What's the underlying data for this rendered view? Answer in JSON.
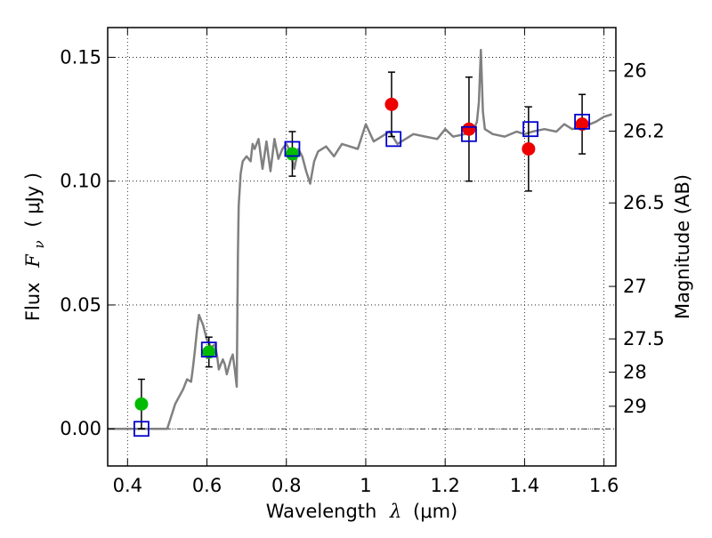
{
  "colors": {
    "background": "#ffffff",
    "model": "#808080",
    "green_points": "#00bb00",
    "red_points": "#ee0000",
    "squares": "#0000cc",
    "errorbar": "#000000",
    "zero_line": "#000000"
  },
  "chart_data": {
    "type": "scatter",
    "title": "",
    "xlabel": "Wavelength",
    "xlabel_symbol": "λ",
    "xlabel_unit": "(μm)",
    "ylabel": "Flux",
    "ylabel_symbol": "F",
    "ylabel_subscript": "ν",
    "ylabel_unit": "( μJy )",
    "y2label": "Magnitude (AB)",
    "xlim": [
      0.35,
      1.63
    ],
    "ylim": [
      -0.015,
      0.162
    ],
    "grid": true,
    "xticks": [
      0.4,
      0.6,
      0.8,
      1.0,
      1.2,
      1.4,
      1.6
    ],
    "xtick_labels": [
      "0.4",
      "0.6",
      "0.8",
      "1",
      "1.2",
      "1.4",
      "1.6"
    ],
    "yticks": [
      0.0,
      0.05,
      0.1,
      0.15
    ],
    "ytick_labels": [
      "0.00",
      "0.05",
      "0.10",
      "0.15"
    ],
    "y2_ticks": [
      {
        "label": "26",
        "flux": 0.1445
      },
      {
        "label": "26.2",
        "flux": 0.1202
      },
      {
        "label": "26.5",
        "flux": 0.0912
      },
      {
        "label": "27",
        "flux": 0.0575
      },
      {
        "label": "27.5",
        "flux": 0.0363
      },
      {
        "label": "28",
        "flux": 0.0229
      },
      {
        "label": "29",
        "flux": 0.0091
      }
    ],
    "zero_line": 0.0,
    "series": [
      {
        "name": "model SED",
        "kind": "line",
        "x": [
          0.35,
          0.5,
          0.52,
          0.54,
          0.55,
          0.56,
          0.565,
          0.57,
          0.575,
          0.58,
          0.585,
          0.59,
          0.6,
          0.61,
          0.62,
          0.625,
          0.63,
          0.635,
          0.64,
          0.645,
          0.65,
          0.66,
          0.665,
          0.67,
          0.675,
          0.678,
          0.68,
          0.685,
          0.69,
          0.7,
          0.71,
          0.715,
          0.72,
          0.73,
          0.74,
          0.75,
          0.76,
          0.77,
          0.78,
          0.79,
          0.8,
          0.81,
          0.82,
          0.83,
          0.84,
          0.85,
          0.86,
          0.87,
          0.88,
          0.9,
          0.92,
          0.94,
          0.96,
          0.98,
          1.0,
          1.02,
          1.04,
          1.06,
          1.08,
          1.1,
          1.12,
          1.15,
          1.18,
          1.2,
          1.22,
          1.25,
          1.27,
          1.28,
          1.285,
          1.29,
          1.295,
          1.3,
          1.32,
          1.35,
          1.38,
          1.4,
          1.42,
          1.45,
          1.48,
          1.5,
          1.52,
          1.55,
          1.58,
          1.6,
          1.62
        ],
        "y": [
          0.0,
          0.0,
          0.01,
          0.016,
          0.02,
          0.019,
          0.025,
          0.032,
          0.04,
          0.046,
          0.044,
          0.042,
          0.036,
          0.033,
          0.034,
          0.03,
          0.024,
          0.026,
          0.028,
          0.026,
          0.022,
          0.028,
          0.03,
          0.024,
          0.017,
          0.07,
          0.09,
          0.103,
          0.108,
          0.11,
          0.108,
          0.115,
          0.113,
          0.117,
          0.105,
          0.116,
          0.104,
          0.117,
          0.109,
          0.113,
          0.115,
          0.112,
          0.105,
          0.113,
          0.11,
          0.104,
          0.099,
          0.108,
          0.112,
          0.114,
          0.11,
          0.115,
          0.114,
          0.113,
          0.123,
          0.116,
          0.118,
          0.12,
          0.115,
          0.117,
          0.119,
          0.118,
          0.117,
          0.121,
          0.118,
          0.119,
          0.12,
          0.124,
          0.132,
          0.153,
          0.128,
          0.121,
          0.119,
          0.118,
          0.12,
          0.119,
          0.12,
          0.121,
          0.12,
          0.123,
          0.121,
          0.122,
          0.124,
          0.126,
          0.127
        ]
      },
      {
        "name": "green photometry",
        "kind": "marker",
        "x": [
          0.435,
          0.605,
          0.815
        ],
        "y": [
          0.01,
          0.031,
          0.111
        ],
        "yerr": [
          0.01,
          0.006,
          0.009
        ]
      },
      {
        "name": "red photometry",
        "kind": "marker",
        "x": [
          1.065,
          1.26,
          1.41,
          1.545
        ],
        "y": [
          0.131,
          0.121,
          0.113,
          0.123
        ],
        "yerr": [
          0.013,
          0.021,
          0.017,
          0.012
        ]
      },
      {
        "name": "model fluxes",
        "kind": "open-square",
        "x": [
          0.435,
          0.605,
          0.815,
          1.07,
          1.26,
          1.415,
          1.545
        ],
        "y": [
          0.0,
          0.032,
          0.113,
          0.117,
          0.119,
          0.121,
          0.124
        ]
      }
    ]
  }
}
